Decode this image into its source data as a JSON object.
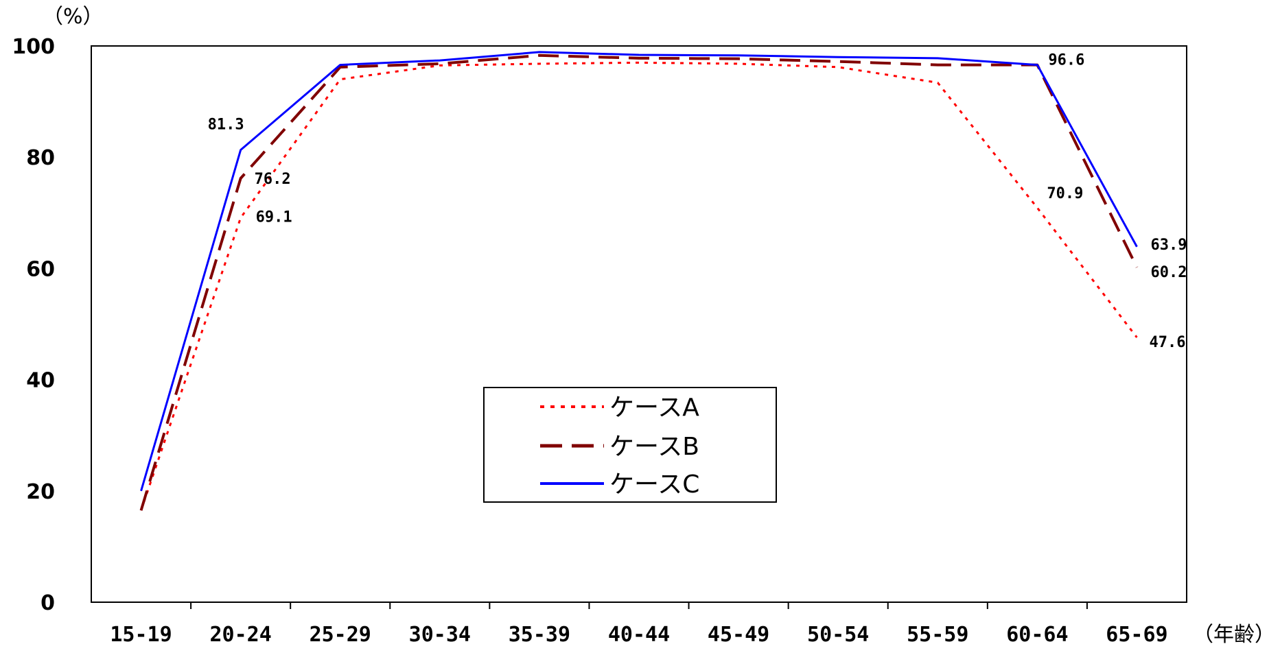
{
  "chart_data": {
    "type": "line",
    "title": "",
    "xlabel": "",
    "ylabel": "",
    "y_unit": "（%）",
    "x_unit": "（年齢）",
    "ylim": [
      0,
      100
    ],
    "yticks": [
      0,
      20,
      40,
      60,
      80,
      100
    ],
    "grid": false,
    "legend_position": "center",
    "categories": [
      "15-19",
      "20-24",
      "25-29",
      "30-34",
      "35-39",
      "40-44",
      "45-49",
      "50-54",
      "55-59",
      "60-64",
      "65-69"
    ],
    "series": [
      {
        "name": "ケースA",
        "color": "#ff0000",
        "style": "dotted",
        "values": [
          16.5,
          69.1,
          94.0,
          96.5,
          96.8,
          97.0,
          96.8,
          96.2,
          93.4,
          70.9,
          47.6
        ],
        "labels": {
          "1": "69.1",
          "9": "70.9",
          "10": "47.6"
        }
      },
      {
        "name": "ケースB",
        "color": "#800000",
        "style": "dashed",
        "values": [
          16.5,
          76.2,
          96.2,
          96.8,
          98.3,
          97.8,
          97.7,
          97.2,
          96.6,
          96.6,
          60.2
        ],
        "labels": {
          "1": "76.2",
          "10": "60.2"
        }
      },
      {
        "name": "ケースC",
        "color": "#0000ff",
        "style": "solid",
        "values": [
          20.0,
          81.3,
          96.6,
          97.4,
          98.9,
          98.4,
          98.3,
          98.0,
          97.8,
          96.6,
          63.9
        ],
        "labels": {
          "1": "81.3",
          "9": "96.6",
          "10": "63.9"
        }
      }
    ]
  }
}
